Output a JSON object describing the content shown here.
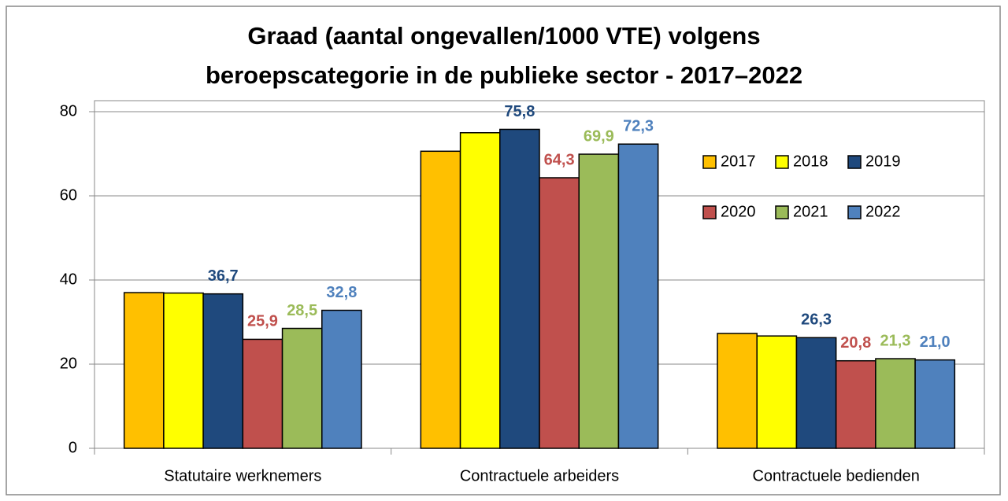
{
  "chart_data": {
    "type": "bar",
    "title": [
      "Graad (aantal ongevallen/1000 VTE) volgens",
      "beroepscategorie in de publieke sector - 2017–2022"
    ],
    "categories": [
      "Statutaire werknemers",
      "Contractuele arbeiders",
      "Contractuele bedienden"
    ],
    "series": [
      {
        "name": "2017",
        "color": "#FFC000",
        "values": [
          37.0,
          70.6,
          27.3
        ],
        "value_labels": [
          null,
          null,
          null
        ]
      },
      {
        "name": "2018",
        "color": "#FFFF00",
        "values": [
          36.9,
          75.0,
          26.7
        ],
        "value_labels": [
          null,
          null,
          null
        ]
      },
      {
        "name": "2019",
        "color": "#1F497D",
        "values": [
          36.7,
          75.8,
          26.3
        ],
        "value_labels": [
          "36,7",
          "75,8",
          "26,3"
        ]
      },
      {
        "name": "2020",
        "color": "#C0504D",
        "values": [
          25.9,
          64.3,
          20.8
        ],
        "value_labels": [
          "25,9",
          "64,3",
          "20,8"
        ]
      },
      {
        "name": "2021",
        "color": "#9BBB59",
        "values": [
          28.5,
          69.9,
          21.3
        ],
        "value_labels": [
          "28,5",
          "69,9",
          "21,3"
        ]
      },
      {
        "name": "2022",
        "color": "#4F81BD",
        "values": [
          32.8,
          72.3,
          21.0
        ],
        "value_labels": [
          "32,8",
          "72,3",
          "21,0"
        ]
      }
    ],
    "ylim": [
      0,
      80
    ],
    "yticks": [
      0,
      20,
      40,
      60,
      80
    ],
    "grid": true,
    "legend": "right"
  }
}
